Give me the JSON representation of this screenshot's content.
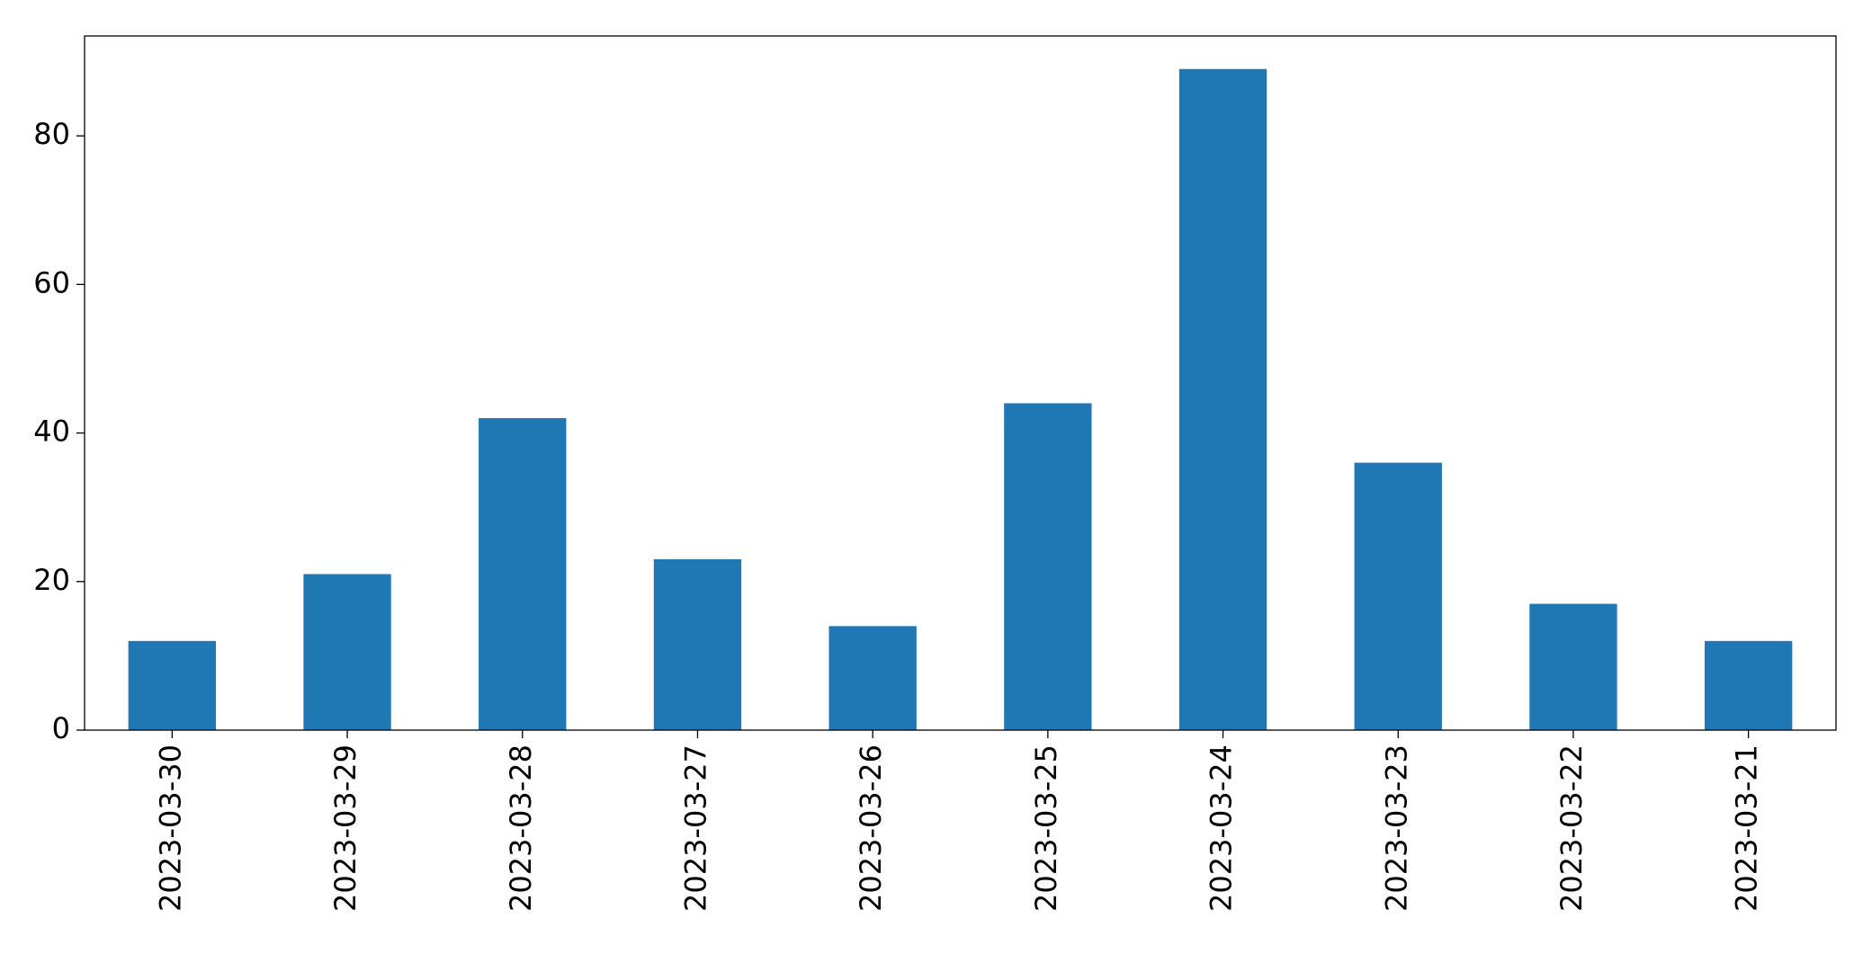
{
  "chart_data": {
    "type": "bar",
    "categories": [
      "2023-03-30",
      "2023-03-29",
      "2023-03-28",
      "2023-03-27",
      "2023-03-26",
      "2023-03-25",
      "2023-03-24",
      "2023-03-23",
      "2023-03-22",
      "2023-03-21"
    ],
    "values": [
      12,
      21,
      42,
      23,
      14,
      44,
      89,
      36,
      17,
      12
    ],
    "color": "#1f77b4",
    "ylim": [
      0,
      93.45
    ],
    "yticks": [
      0,
      20,
      40,
      60,
      80
    ],
    "grid": false
  }
}
